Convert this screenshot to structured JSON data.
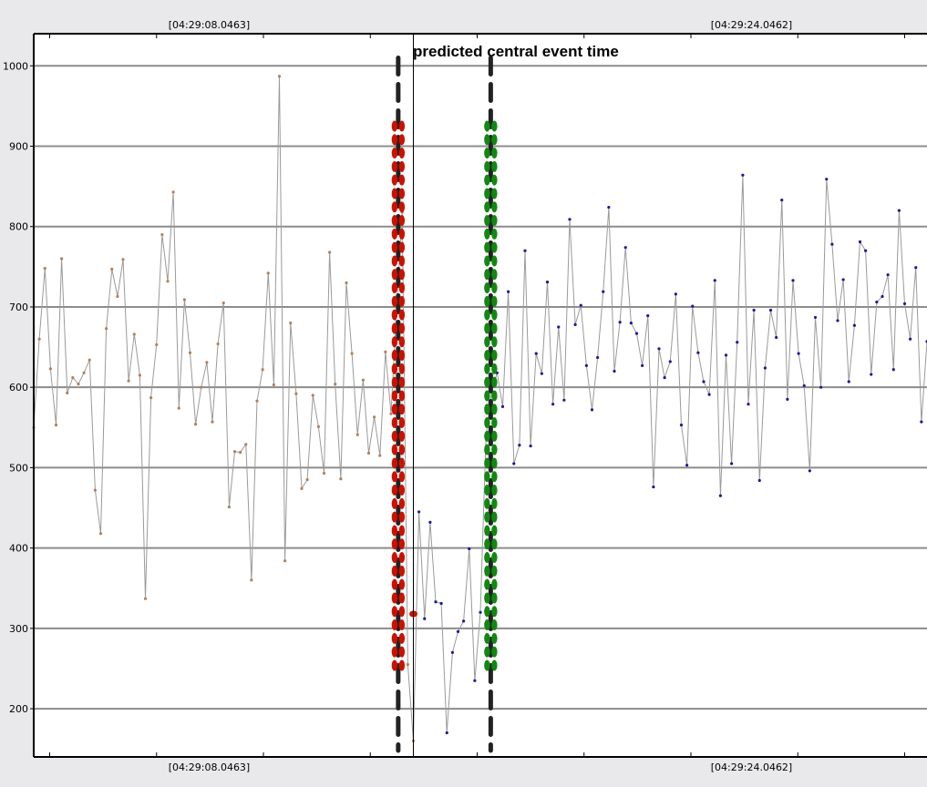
{
  "chart_data": {
    "type": "line",
    "title": "",
    "annotation": "predicted central event time",
    "ylim": [
      140,
      1040
    ],
    "y_ticks": [
      200,
      300,
      400,
      500,
      600,
      700,
      800,
      900,
      1000
    ],
    "y_tick_labels": [
      "200",
      "300",
      "400",
      "500",
      "600",
      "700",
      "800",
      "900",
      "1000"
    ],
    "time_labels_top": [
      "[04:29:08.0463]",
      "[04:29:24.0462]"
    ],
    "time_labels_bottom": [
      "[04:29:08.0463]",
      "[04:29:24.0462]"
    ],
    "x_range": [
      0,
      112
    ],
    "time_label_positions": [
      22,
      90
    ],
    "event_time": 47.6,
    "window_start": 45.7,
    "window_end": 57.3,
    "band_ylim": [
      245,
      925
    ],
    "colors": {
      "line": "#9a9a9a",
      "marker_pre": "#b2805c",
      "marker_post": "#1a1a99",
      "red_band": "#cc1100",
      "green_band": "#118811",
      "dashed": "#222222",
      "grid": "#8c8c8c",
      "axes": "#000000"
    },
    "series": [
      {
        "values": [
          550,
          660,
          748,
          623,
          553,
          760,
          593,
          612,
          604,
          618,
          634,
          472,
          418,
          673,
          747,
          713,
          759,
          608,
          666,
          615,
          337,
          587,
          653,
          790,
          732,
          843,
          574,
          709,
          643,
          554,
          600,
          631,
          557,
          654,
          705,
          451,
          520,
          519,
          529,
          360,
          583,
          622,
          742,
          603,
          987,
          384,
          680,
          592,
          474,
          485,
          590,
          551,
          493,
          768,
          604,
          486,
          730,
          642,
          541,
          609,
          518,
          563,
          515,
          644,
          567,
          700,
          818,
          255,
          160,
          445,
          312,
          432,
          333,
          331,
          170,
          270,
          296,
          309,
          399,
          235,
          320,
          537,
          595,
          618,
          576,
          719,
          505,
          528,
          770,
          527,
          642,
          617,
          731,
          579,
          675,
          584,
          809,
          678,
          702,
          627,
          572,
          637,
          719,
          824,
          620,
          681,
          774,
          680,
          667,
          627,
          689,
          476,
          648,
          612,
          632,
          716,
          553,
          503,
          701,
          643,
          607,
          591,
          733,
          465,
          640,
          505,
          656,
          864,
          579,
          696,
          484,
          624,
          696,
          662,
          833,
          585,
          733,
          642,
          602,
          496,
          687,
          600,
          859,
          778,
          683,
          734,
          607,
          677,
          781,
          770,
          616,
          706,
          713,
          740,
          622,
          820,
          704,
          660,
          749,
          557,
          657
        ]
      }
    ]
  }
}
